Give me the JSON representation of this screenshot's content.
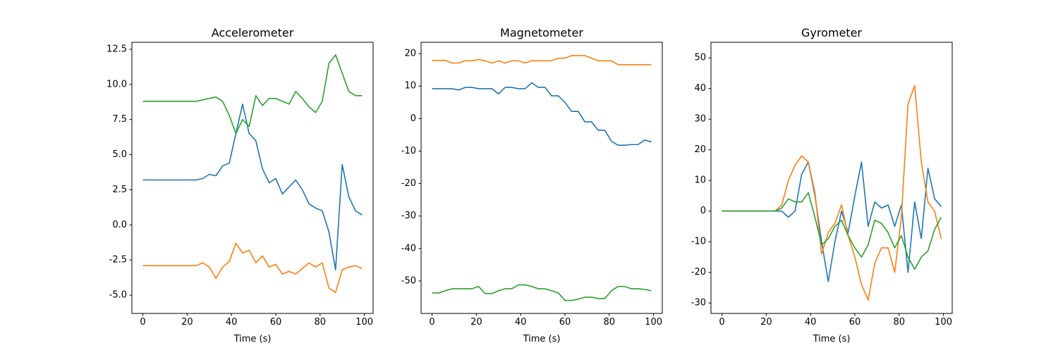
{
  "chart_data": [
    {
      "type": "line",
      "title": "Accelerometer",
      "xlabel": "Time (s)",
      "x": [
        0,
        3,
        6,
        9,
        12,
        15,
        18,
        21,
        24,
        27,
        30,
        33,
        36,
        39,
        42,
        45,
        48,
        51,
        54,
        57,
        60,
        63,
        66,
        69,
        72,
        75,
        78,
        81,
        84,
        87,
        90,
        93,
        96,
        99
      ],
      "xlim": [
        -4.95,
        103.95
      ],
      "xticks": [
        0,
        20,
        40,
        60,
        80,
        100
      ],
      "ylim": [
        -6.3,
        13.0
      ],
      "yticks": [
        {
          "value": -5,
          "label": "-5.0"
        },
        -2.5,
        {
          "value": 0,
          "label": "0.0"
        },
        2.5,
        {
          "value": 5,
          "label": "5.0"
        },
        7.5,
        {
          "value": 10,
          "label": "10.0"
        },
        12.5
      ],
      "series": [
        {
          "color": "#1f77b4",
          "values": [
            3.2,
            3.2,
            3.2,
            3.2,
            3.2,
            3.2,
            3.2,
            3.2,
            3.2,
            3.3,
            3.6,
            3.5,
            4.2,
            4.4,
            6.5,
            8.6,
            6.5,
            6.0,
            4.0,
            3.0,
            3.3,
            2.2,
            2.7,
            3.2,
            2.5,
            1.5,
            1.2,
            1.0,
            -0.5,
            -3.2,
            4.3,
            2.0,
            1.0,
            0.7
          ]
        },
        {
          "color": "#ff7f0e",
          "values": [
            -2.9,
            -2.9,
            -2.9,
            -2.9,
            -2.9,
            -2.9,
            -2.9,
            -2.9,
            -2.9,
            -2.7,
            -3.0,
            -3.8,
            -3.0,
            -2.6,
            -1.3,
            -2.0,
            -1.8,
            -2.7,
            -2.2,
            -3.0,
            -2.8,
            -3.5,
            -3.3,
            -3.5,
            -3.1,
            -2.7,
            -3.0,
            -2.7,
            -4.5,
            -4.8,
            -3.2,
            -3.0,
            -2.9,
            -3.1
          ]
        },
        {
          "color": "#2ca02c",
          "values": [
            8.8,
            8.8,
            8.8,
            8.8,
            8.8,
            8.8,
            8.8,
            8.8,
            8.8,
            8.9,
            9.0,
            9.1,
            8.8,
            7.8,
            6.5,
            7.5,
            7.0,
            9.2,
            8.5,
            9.0,
            9.0,
            8.8,
            8.6,
            9.5,
            9.0,
            8.4,
            8.0,
            8.8,
            11.5,
            12.1,
            10.8,
            9.5,
            9.2,
            9.2
          ]
        }
      ]
    },
    {
      "type": "line",
      "title": "Magnetometer",
      "xlabel": "Time (s)",
      "x": [
        0,
        3,
        6,
        9,
        12,
        15,
        18,
        21,
        24,
        27,
        30,
        33,
        36,
        39,
        42,
        45,
        48,
        51,
        54,
        57,
        60,
        63,
        66,
        69,
        72,
        75,
        78,
        81,
        84,
        87,
        90,
        93,
        96,
        99
      ],
      "xlim": [
        -4.95,
        103.95
      ],
      "xticks": [
        0,
        20,
        40,
        60,
        80,
        100
      ],
      "ylim": [
        -60.0,
        23.5
      ],
      "yticks": [
        -50,
        -40,
        -30,
        -20,
        -10,
        0,
        10,
        20
      ],
      "series": [
        {
          "color": "#1f77b4",
          "values": [
            9.2,
            9.2,
            9.2,
            9.2,
            8.8,
            9.6,
            9.6,
            9.2,
            9.2,
            9.2,
            7.6,
            9.6,
            9.6,
            9.2,
            9.2,
            11.0,
            9.6,
            9.6,
            7.0,
            7.0,
            5.0,
            2.2,
            2.2,
            -1.0,
            -1.0,
            -3.6,
            -3.6,
            -7.0,
            -8.2,
            -8.2,
            -8.0,
            -8.0,
            -6.6,
            -7.2
          ]
        },
        {
          "color": "#ff7f0e",
          "values": [
            17.9,
            17.9,
            17.9,
            17.1,
            17.1,
            17.8,
            17.8,
            18.2,
            17.8,
            17.1,
            17.8,
            17.1,
            17.8,
            17.8,
            17.1,
            17.8,
            17.8,
            17.8,
            17.8,
            18.6,
            18.6,
            19.4,
            19.4,
            19.4,
            18.6,
            17.8,
            17.8,
            17.8,
            16.6,
            16.6,
            16.6,
            16.6,
            16.6,
            16.6
          ]
        },
        {
          "color": "#2ca02c",
          "values": [
            -53.7,
            -53.7,
            -53.0,
            -52.4,
            -52.4,
            -52.4,
            -52.4,
            -51.7,
            -53.9,
            -53.9,
            -53.0,
            -52.4,
            -52.4,
            -51.2,
            -51.2,
            -51.7,
            -52.4,
            -52.4,
            -53.0,
            -53.7,
            -56.0,
            -56.0,
            -55.6,
            -55.0,
            -55.0,
            -55.4,
            -55.4,
            -53.0,
            -51.7,
            -51.7,
            -52.4,
            -52.4,
            -52.6,
            -53.0
          ]
        }
      ]
    },
    {
      "type": "line",
      "title": "Gyrometer",
      "xlabel": "Time (s)",
      "x": [
        0,
        3,
        6,
        9,
        12,
        15,
        18,
        21,
        24,
        27,
        30,
        33,
        36,
        39,
        42,
        45,
        48,
        51,
        54,
        57,
        60,
        63,
        66,
        69,
        72,
        75,
        78,
        81,
        84,
        87,
        90,
        93,
        96,
        99
      ],
      "xlim": [
        -4.95,
        103.95
      ],
      "xticks": [
        0,
        20,
        40,
        60,
        80,
        100
      ],
      "ylim": [
        -33.4,
        55.1
      ],
      "yticks": [
        -30,
        -20,
        -10,
        0,
        10,
        20,
        30,
        40,
        50
      ],
      "series": [
        {
          "color": "#1f77b4",
          "values": [
            0,
            0,
            0,
            0,
            0,
            0,
            0,
            0,
            0,
            0,
            -2,
            0,
            12,
            16,
            5,
            -10,
            -23,
            -10,
            0,
            -7,
            5,
            16,
            -5,
            3,
            1,
            2,
            -5,
            2,
            -20,
            3,
            -9,
            14,
            4,
            1.5
          ]
        },
        {
          "color": "#ff7f0e",
          "values": [
            0,
            0,
            0,
            0,
            0,
            0,
            0,
            0,
            0,
            2,
            10,
            15,
            18,
            16,
            6,
            -14,
            -7,
            -4,
            2,
            -8,
            -15,
            -24,
            -29,
            -17,
            -12,
            -12,
            -20,
            -2,
            35,
            41,
            16,
            3,
            0,
            -9
          ]
        },
        {
          "color": "#2ca02c",
          "values": [
            0,
            0,
            0,
            0,
            0,
            0,
            0,
            0,
            0,
            1,
            4,
            3,
            3,
            6,
            -2,
            -11,
            -9,
            -5,
            -3,
            -8,
            -12,
            -15,
            -11,
            -3,
            -4,
            -7,
            -12,
            -8,
            -15,
            -19,
            -15,
            -13,
            -6,
            -2
          ]
        }
      ]
    }
  ]
}
